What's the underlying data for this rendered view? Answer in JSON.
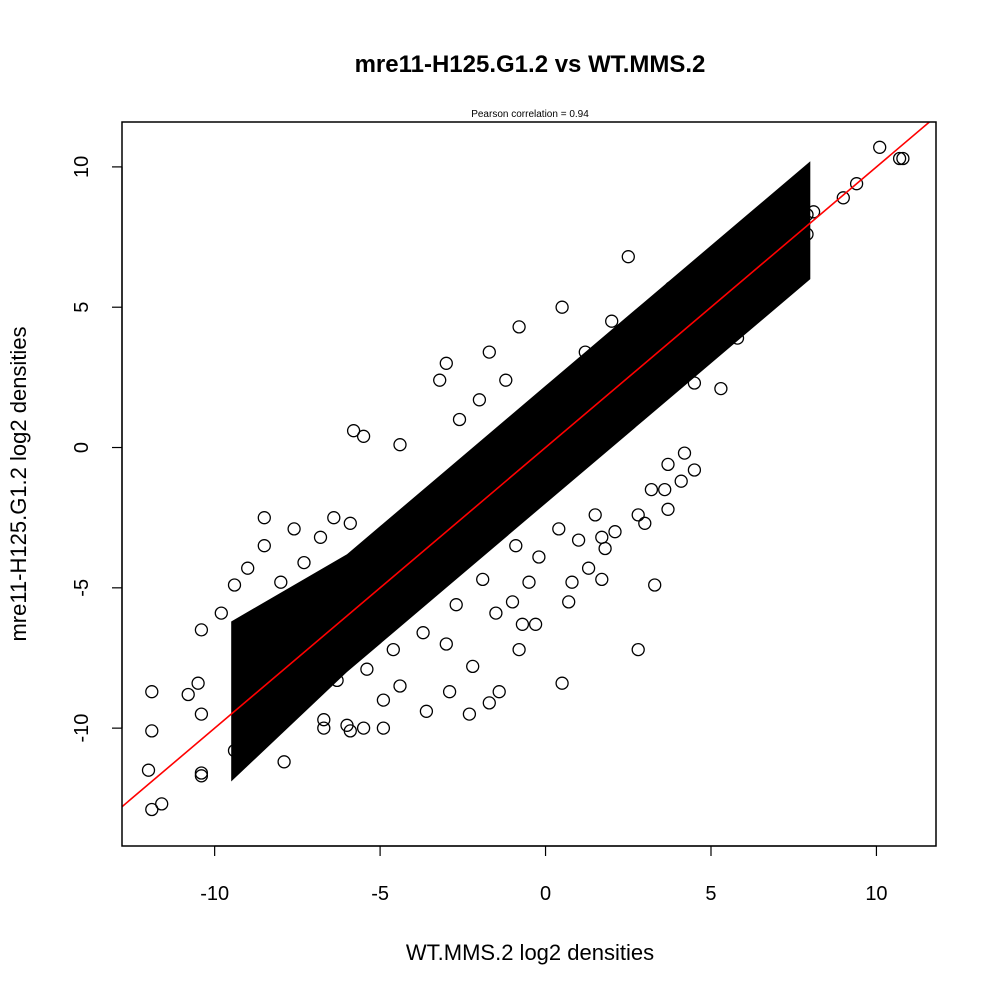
{
  "chart_data": {
    "type": "scatter",
    "title": "mre11-H125.G1.2 vs WT.MMS.2",
    "subtitle": "Pearson correlation =  0.94",
    "xlabel": "WT.MMS.2 log2 densities",
    "ylabel": "mre11-H125.G1.2 log2 densities",
    "xlim": [
      -12.8,
      11.8
    ],
    "ylim": [
      -14.2,
      11.6
    ],
    "xticks": [
      -10,
      -5,
      0,
      5,
      10
    ],
    "yticks": [
      -10,
      -5,
      0,
      5,
      10
    ],
    "xtick_labels": [
      "-10",
      "-5",
      "0",
      "5",
      "10"
    ],
    "ytick_labels": [
      "-10",
      "-5",
      "0",
      "5",
      "10"
    ],
    "grid": false,
    "point_color": "#000000",
    "line_color": "#ff0000",
    "fit_line": {
      "slope": 1.0,
      "intercept": 0.0
    },
    "series": [
      {
        "values_description_omitted": true,
        "points": [
          [
            10.1,
            10.7
          ],
          [
            10.7,
            10.3
          ],
          [
            10.8,
            10.3
          ],
          [
            9.4,
            9.4
          ],
          [
            9.0,
            8.9
          ],
          [
            8.1,
            8.4
          ],
          [
            7.9,
            8.3
          ],
          [
            6.1,
            6.8
          ],
          [
            5.7,
            6.3
          ],
          [
            2.5,
            6.8
          ],
          [
            0.5,
            5.0
          ],
          [
            -0.8,
            4.3
          ],
          [
            -1.7,
            3.4
          ],
          [
            -3.0,
            3.0
          ],
          [
            -5.5,
            0.4
          ],
          [
            -5.8,
            0.6
          ],
          [
            -4.4,
            0.1
          ],
          [
            -3.2,
            2.4
          ],
          [
            4.8,
            4.0
          ],
          [
            5.2,
            3.8
          ],
          [
            4.5,
            2.3
          ],
          [
            5.3,
            2.1
          ],
          [
            4.2,
            -0.2
          ],
          [
            4.5,
            -0.8
          ],
          [
            4.1,
            -1.2
          ],
          [
            3.7,
            -0.6
          ],
          [
            3.2,
            -1.5
          ],
          [
            3.6,
            -1.5
          ],
          [
            3.7,
            -2.2
          ],
          [
            3.0,
            -2.7
          ],
          [
            1.8,
            -3.6
          ],
          [
            1.7,
            -3.2
          ],
          [
            1.0,
            -3.3
          ],
          [
            1.3,
            -4.3
          ],
          [
            1.7,
            -4.7
          ],
          [
            3.3,
            -4.9
          ],
          [
            0.8,
            -4.8
          ],
          [
            0.7,
            -5.5
          ],
          [
            -0.3,
            -6.3
          ],
          [
            -0.7,
            -6.3
          ],
          [
            -0.8,
            -7.2
          ],
          [
            2.8,
            -7.2
          ],
          [
            0.5,
            -8.4
          ],
          [
            -1.4,
            -8.7
          ],
          [
            -1.7,
            -9.1
          ],
          [
            -2.3,
            -9.5
          ],
          [
            -4.9,
            -10.0
          ],
          [
            -5.5,
            -10.0
          ],
          [
            -5.9,
            -10.1
          ],
          [
            -6.7,
            -10.0
          ],
          [
            -7.9,
            -11.2
          ],
          [
            -10.4,
            -11.6
          ],
          [
            -11.6,
            -12.7
          ],
          [
            -11.9,
            -12.9
          ],
          [
            -12.0,
            -11.5
          ],
          [
            -11.9,
            -10.1
          ],
          [
            -11.9,
            -8.7
          ],
          [
            -10.8,
            -8.8
          ],
          [
            -10.4,
            -9.5
          ],
          [
            -10.5,
            -8.4
          ],
          [
            -10.4,
            -6.5
          ],
          [
            -9.8,
            -5.9
          ],
          [
            -9.4,
            -4.9
          ],
          [
            -9.0,
            -4.3
          ],
          [
            -8.5,
            -3.5
          ],
          [
            -8.5,
            -2.5
          ],
          [
            -7.6,
            -2.9
          ],
          [
            -6.8,
            -3.2
          ],
          [
            -6.4,
            -2.5
          ],
          [
            -5.9,
            -2.7
          ],
          [
            -7.2,
            -8.5
          ],
          [
            -8.2,
            -9.1
          ],
          [
            -9.2,
            -10.0
          ],
          [
            -9.4,
            -10.8
          ],
          [
            -10.4,
            -11.7
          ],
          [
            -8.8,
            -10.5
          ],
          [
            -8.6,
            -9.8
          ],
          [
            -8.3,
            -9.5
          ],
          [
            -7.6,
            -9.4
          ],
          [
            -6.7,
            -9.7
          ],
          [
            -6.0,
            -9.9
          ],
          [
            -4.9,
            -9.0
          ],
          [
            -4.4,
            -8.5
          ],
          [
            -3.6,
            -9.4
          ],
          [
            -2.9,
            -8.7
          ],
          [
            -2.2,
            -7.8
          ],
          [
            -3.0,
            -7.0
          ],
          [
            -1.0,
            -5.5
          ],
          [
            -0.5,
            -4.8
          ],
          [
            -1.5,
            -5.9
          ],
          [
            2.1,
            -3.0
          ],
          [
            2.8,
            -2.4
          ],
          [
            1.5,
            -2.4
          ],
          [
            0.4,
            -2.9
          ],
          [
            -0.2,
            -3.9
          ],
          [
            -2.6,
            1.0
          ],
          [
            -2.0,
            1.7
          ],
          [
            -1.2,
            2.4
          ],
          [
            -0.3,
            1.4
          ],
          [
            0.2,
            1.9
          ],
          [
            1.2,
            3.4
          ],
          [
            2.0,
            4.5
          ],
          [
            3.0,
            4.8
          ],
          [
            3.8,
            5.7
          ],
          [
            4.7,
            6.2
          ],
          [
            5.6,
            5.4
          ],
          [
            6.8,
            6.5
          ],
          [
            7.2,
            7.2
          ],
          [
            7.9,
            7.6
          ],
          [
            7.4,
            6.4
          ],
          [
            6.3,
            5.5
          ],
          [
            5.5,
            4.4
          ],
          [
            5.8,
            3.9
          ],
          [
            4.9,
            3.3
          ],
          [
            3.9,
            2.3
          ],
          [
            3.5,
            3.5
          ],
          [
            2.4,
            2.2
          ],
          [
            1.6,
            1.3
          ],
          [
            0.9,
            0.3
          ],
          [
            0.3,
            -0.3
          ],
          [
            -0.5,
            -0.7
          ],
          [
            -1.3,
            -1.6
          ],
          [
            -2.1,
            -2.2
          ],
          [
            -2.8,
            -3.0
          ],
          [
            -3.6,
            -3.4
          ],
          [
            -4.4,
            -4.3
          ],
          [
            -5.2,
            -4.9
          ],
          [
            -6.0,
            -5.9
          ],
          [
            -6.9,
            -6.6
          ],
          [
            -7.8,
            -7.3
          ],
          [
            -8.6,
            -8.4
          ],
          [
            -7.0,
            -5.2
          ],
          [
            -6.1,
            -4.4
          ],
          [
            -5.1,
            -3.3
          ],
          [
            -4.2,
            -2.4
          ],
          [
            -3.3,
            -1.5
          ],
          [
            -2.4,
            -0.6
          ],
          [
            -1.5,
            0.2
          ],
          [
            -0.6,
            1.0
          ],
          [
            0.6,
            2.4
          ],
          [
            1.9,
            3.1
          ],
          [
            2.9,
            3.6
          ],
          [
            3.8,
            4.4
          ],
          [
            4.6,
            5.2
          ],
          [
            5.2,
            5.8
          ],
          [
            -7.5,
            -6.0
          ],
          [
            -6.6,
            -7.1
          ],
          [
            -5.7,
            -6.4
          ],
          [
            -4.8,
            -5.4
          ],
          [
            -3.9,
            -4.6
          ],
          [
            -3.0,
            -3.7
          ],
          [
            -2.0,
            -2.9
          ],
          [
            -1.1,
            -2.0
          ],
          [
            -0.2,
            -1.3
          ],
          [
            0.7,
            -0.5
          ],
          [
            1.6,
            0.4
          ],
          [
            2.5,
            1.2
          ],
          [
            3.3,
            2.0
          ],
          [
            4.1,
            3.0
          ],
          [
            4.9,
            3.9
          ],
          [
            5.8,
            4.7
          ],
          [
            6.5,
            5.9
          ],
          [
            7.1,
            6.8
          ],
          [
            -8.0,
            -4.8
          ],
          [
            -7.3,
            -4.1
          ],
          [
            -8.9,
            -6.1
          ],
          [
            -9.2,
            -7.6
          ],
          [
            -8.1,
            -7.8
          ],
          [
            -6.3,
            -8.3
          ],
          [
            -5.4,
            -7.9
          ],
          [
            -4.6,
            -7.2
          ],
          [
            -3.7,
            -6.6
          ],
          [
            -2.7,
            -5.6
          ],
          [
            -1.9,
            -4.7
          ],
          [
            -0.9,
            -3.5
          ]
        ]
      }
    ]
  }
}
